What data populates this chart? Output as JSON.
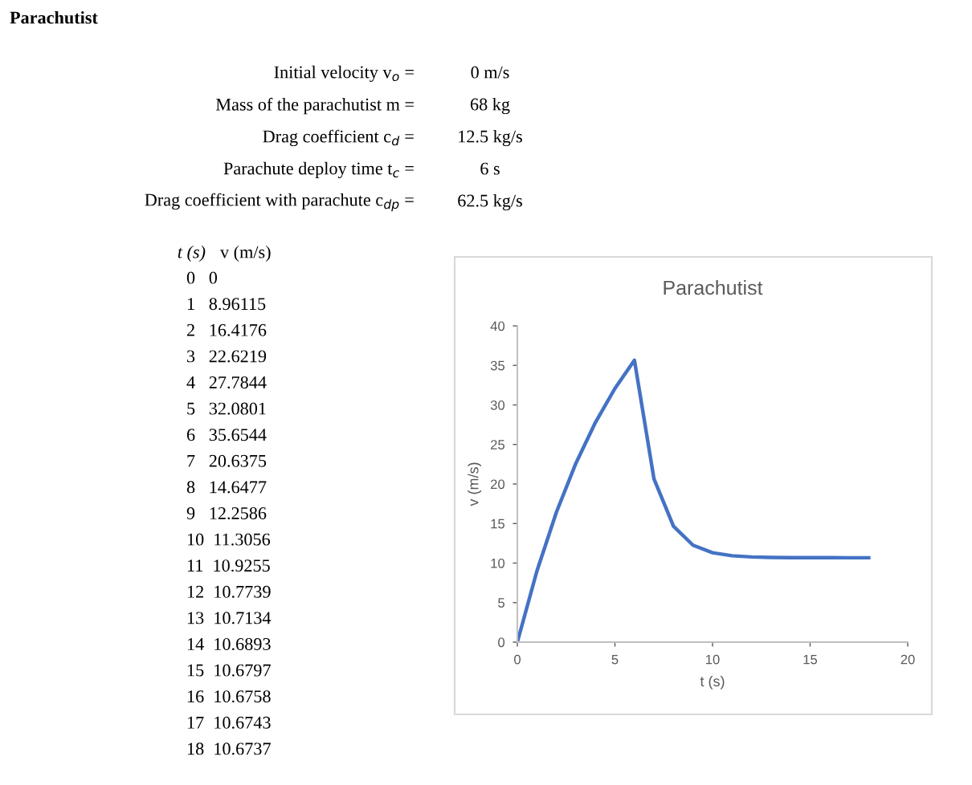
{
  "chart_data": [
    {
      "type": "other",
      "annotations": [
        "Parachutist",
        "Initial velocity v$_{o}$ =",
        "0 m/s",
        "Mass of the parachutist m =",
        "68 kg",
        "Drag coefficient c$_{d}$ =",
        "12.5 kg/s",
        "Parachute deploy time t$_{c}$ =",
        "6 s",
        "Drag coefficient with parachute c$_{dp}$ =",
        "62.5 kg/s",
        "t (s)",
        "v (m/s)",
        "0   0",
        "1   8.96115",
        "2   16.4176",
        "3   22.6219",
        "4   27.7844",
        "5   32.0801",
        "6   35.6544",
        "7   20.6375",
        "8   14.6477",
        "9   12.2586",
        "10  11.3056",
        "11  10.9255",
        "12  10.7739",
        "13  10.7134",
        "14  10.6893",
        "15  10.6797",
        "16  10.6758",
        "17  10.6743",
        "18  10.6737"
      ]
    },
    {
      "type": "line",
      "title": "Parachutist",
      "xlabel": "t (s)",
      "ylabel": "v (m/s)",
      "x": [
        0,
        1,
        2,
        3,
        4,
        5,
        6,
        7,
        8,
        9,
        10,
        11,
        12,
        13,
        14,
        15,
        16,
        17,
        18
      ],
      "values": [
        0,
        8.96115,
        16.4176,
        22.6219,
        27.7844,
        32.0801,
        35.6544,
        20.6375,
        14.6477,
        12.2586,
        11.3056,
        10.9255,
        10.7739,
        10.7134,
        10.6893,
        10.6797,
        10.6758,
        10.6743,
        10.6737
      ],
      "color": "#4472c4",
      "marker": "none",
      "line_style": "solid",
      "grid": false,
      "xlim": [
        0,
        20
      ],
      "xticks": [
        0,
        5,
        10,
        15,
        20
      ],
      "ylim": [
        0,
        40
      ],
      "yticks": [
        0,
        5,
        10,
        15,
        20,
        25,
        30,
        35,
        40
      ]
    }
  ]
}
